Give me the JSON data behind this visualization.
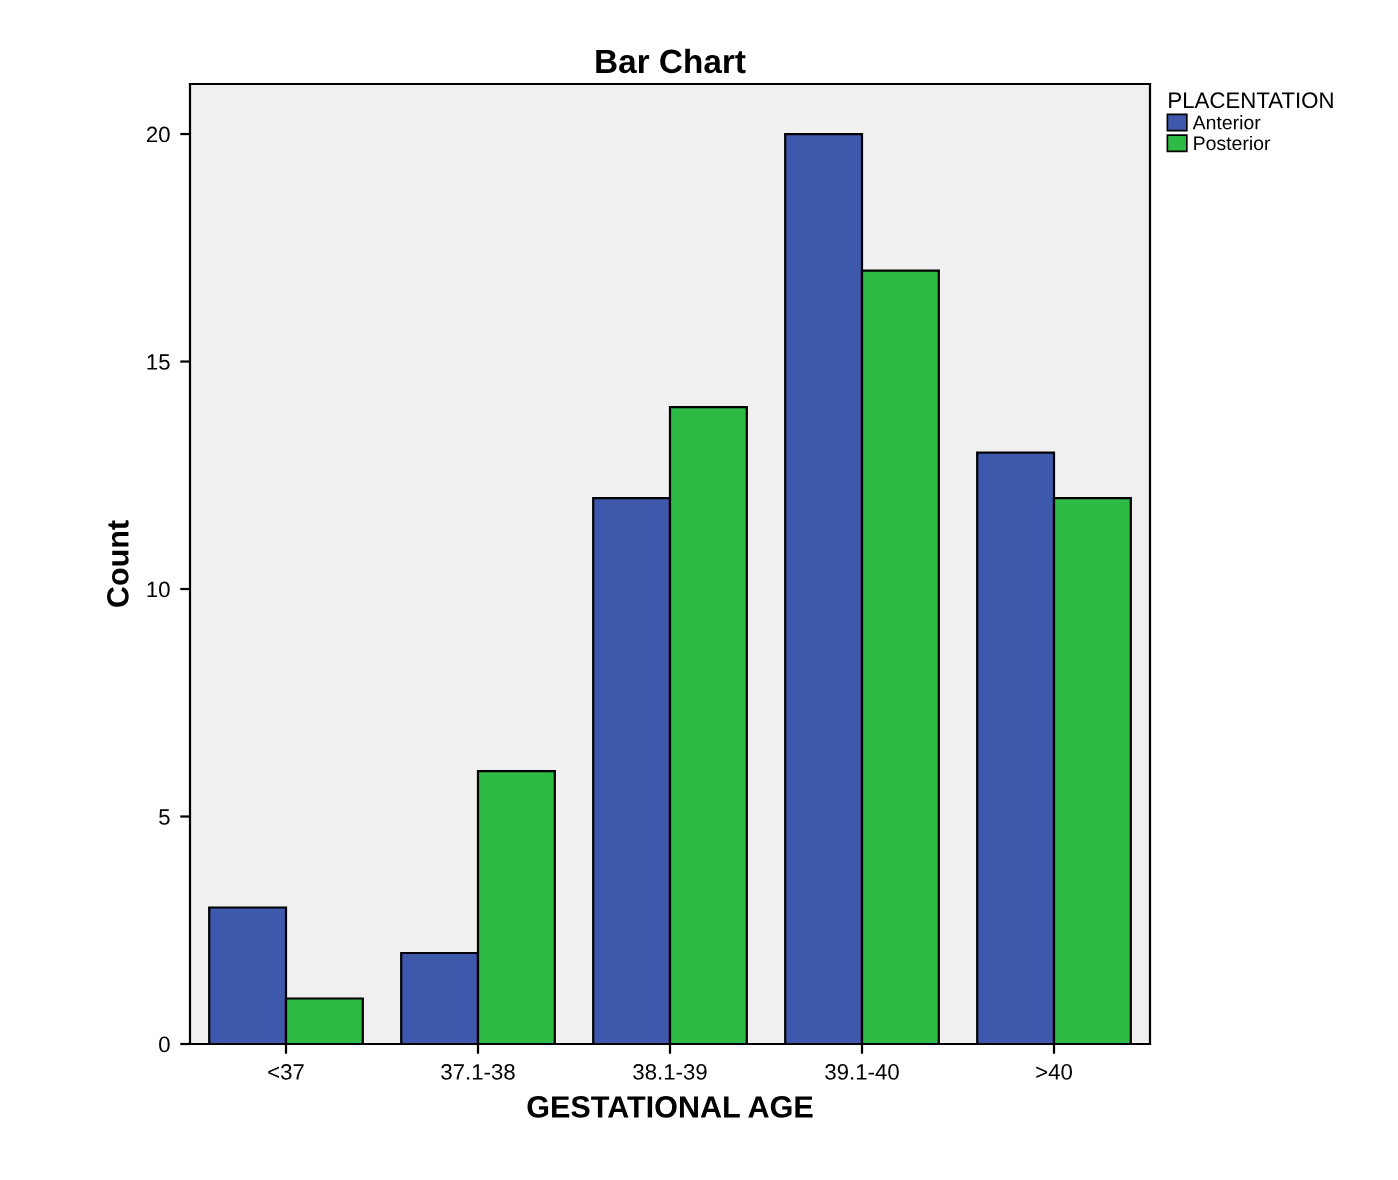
{
  "chart_data": {
    "type": "bar",
    "title": "Bar Chart",
    "xlabel": "GESTATIONAL AGE",
    "ylabel": "Count",
    "legend_title": "PLACENTATION",
    "categories": [
      "<37",
      "37.1-38",
      "38.1-39",
      "39.1-40",
      ">40"
    ],
    "series": [
      {
        "name": "Anterior",
        "color": "#3e58ac",
        "values": [
          3,
          2,
          12,
          20,
          13
        ]
      },
      {
        "name": "Posterior",
        "color": "#2dbb45",
        "values": [
          1,
          6,
          14,
          17,
          12
        ]
      }
    ],
    "ylim": [
      0,
      21.1
    ],
    "yticks": [
      0,
      5,
      10,
      15,
      20
    ],
    "grid": false,
    "legend": "top right"
  }
}
